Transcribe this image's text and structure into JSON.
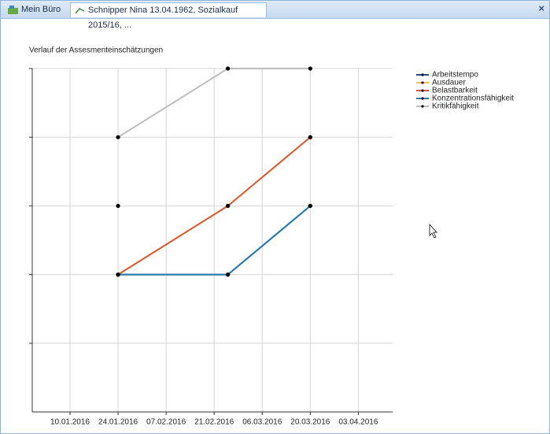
{
  "tabs": [
    {
      "label": "Mein Büro"
    },
    {
      "label": "Schnipper Nina 13.04.1962, Sozialkauf 2015/16, ..."
    }
  ],
  "close": "×",
  "chart_data": {
    "type": "line",
    "title": "Verlauf der Assesmenteinschätzungen",
    "x": [
      "24.01.2016",
      "25.02.2016",
      "20.03.2016"
    ],
    "xlim": [
      "30.12.2015",
      "13.04.2016"
    ],
    "xticks": [
      "10.01.2016",
      "24.01.2016",
      "07.02.2016",
      "21.02.2016",
      "06.03.2016",
      "20.03.2016",
      "03.04.2016"
    ],
    "ylim": [
      0,
      5
    ],
    "yticks": [
      1,
      2,
      3,
      4,
      5
    ],
    "grid": true,
    "legend": "top-right",
    "series": [
      {
        "name": "Arbeitstempo",
        "color": "#1f4e8c",
        "values": [
          2,
          2,
          3
        ]
      },
      {
        "name": "Ausdauer",
        "color": "#f5b85a",
        "values": [
          3,
          null,
          4
        ]
      },
      {
        "name": "Belastbarkeit",
        "color": "#d9582b",
        "values": [
          2,
          3,
          4
        ]
      },
      {
        "name": "Konzentrationsfähigkeit",
        "color": "#2b7bb0",
        "values": [
          2,
          2,
          3
        ]
      },
      {
        "name": "Kritikfähigkeit",
        "color": "#bdbdbd",
        "values": [
          4,
          5,
          5
        ]
      }
    ]
  }
}
